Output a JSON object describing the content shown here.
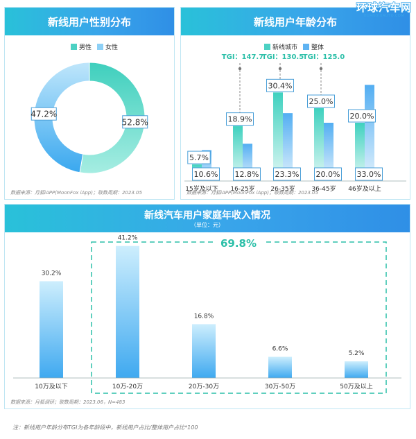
{
  "watermark": {
    "text": "环球汽车网",
    "sub": "HUANQIUAUTO.COM"
  },
  "gender_panel": {
    "title": "新线用户性别分布",
    "source": "数据来源：月狐iAPP(MoonFox iApp)；取数周期：2023.05"
  },
  "age_panel": {
    "title": "新线用户年龄分布",
    "source": "数据来源：月狐iAPP(MoonFox iApp)；取数周期：2023.05"
  },
  "income_panel": {
    "title": "新线汽车用户家庭年收入情况",
    "subtitle": "（单位：元）",
    "source": "数据来源：月狐调研；取数周期：2023.06，N=483",
    "highlight": "69.8%"
  },
  "footnote": "注：新线用户年龄分布TGI为各年龄段中，新线用户占比/整体用户占比*100",
  "colors": {
    "male": "#4cd1c3",
    "female": "#8dd0f6",
    "new_city": "#4cd1c3",
    "overall": "#5fb3f2",
    "accent": "#2bbfa8",
    "header": "#39a5ea"
  },
  "chart_data": [
    {
      "type": "pie",
      "donut": true,
      "categories": [
        "男性",
        "女性"
      ],
      "values": [
        52.8,
        47.2
      ],
      "labels": [
        "52.8%",
        "47.2%"
      ],
      "legend": "top"
    },
    {
      "type": "bar",
      "categories": [
        "15岁及以下",
        "16-25岁",
        "26-35岁",
        "36-45岁",
        "46岁及以上"
      ],
      "series": [
        {
          "name": "新线城市",
          "values": [
            5.7,
            18.9,
            30.4,
            25.0,
            20.0
          ],
          "labels": [
            "5.7%",
            "18.9%",
            "30.4%",
            "25.0%",
            "20.0%"
          ]
        },
        {
          "name": "整体",
          "values": [
            10.6,
            12.8,
            23.3,
            20.0,
            33.0
          ],
          "labels": [
            "10.6%",
            "12.8%",
            "23.3%",
            "20.0%",
            "33.0%"
          ]
        }
      ],
      "annotations": [
        {
          "category": "16-25岁",
          "text": "TGI：147.7"
        },
        {
          "category": "26-35岁",
          "text": "TGI：130.5"
        },
        {
          "category": "36-45岁",
          "text": "TGI：125.0"
        }
      ],
      "legend": "top"
    },
    {
      "type": "bar",
      "categories": [
        "10万及以下",
        "10万-20万",
        "20万-30万",
        "30万-50万",
        "50万及以上"
      ],
      "values": [
        30.2,
        41.2,
        16.8,
        6.6,
        5.2
      ],
      "labels": [
        "30.2%",
        "41.2%",
        "16.8%",
        "6.6%",
        "5.2%"
      ],
      "highlight_group": {
        "categories": [
          "10万-20万",
          "20万-30万",
          "30万-50万",
          "50万及以上"
        ],
        "label": "69.8%"
      }
    }
  ]
}
